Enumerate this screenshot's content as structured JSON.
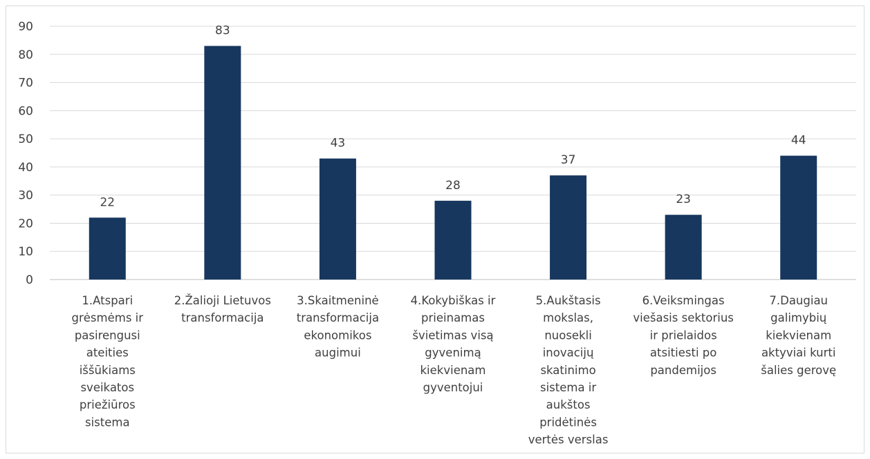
{
  "chart_data": {
    "type": "bar",
    "title": "",
    "xlabel": "",
    "ylabel": "",
    "ylim": [
      0,
      90
    ],
    "yticks": [
      0,
      10,
      20,
      30,
      40,
      50,
      60,
      70,
      80,
      90
    ],
    "grid": true,
    "legend": "none",
    "bar_color": "#17375e",
    "categories": [
      [
        "1.Atspari",
        "grėsmėms ir",
        "pasirengusi",
        "ateities",
        "iššūkiams",
        "sveikatos",
        "priežiūros",
        "sistema"
      ],
      [
        "2.Žalioji Lietuvos",
        "transformacija"
      ],
      [
        "3.Skaitmeninė",
        "transformacija",
        "ekonomikos",
        "augimui"
      ],
      [
        "4.Kokybiškas ir",
        "prieinamas",
        "švietimas visą",
        "gyvenimą",
        "kiekvienam",
        "gyventojui"
      ],
      [
        "5.Aukštasis",
        "mokslas,",
        "nuosekli",
        "inovacijų",
        "skatinimo",
        "sistema ir",
        "aukštos",
        "pridėtinės",
        "vertės verslas"
      ],
      [
        "6.Veiksmingas",
        "viešasis sektorius",
        "ir prielaidos",
        "atsitiesti po",
        "pandemijos"
      ],
      [
        "7.Daugiau",
        "galimybių",
        "kiekvienam",
        "aktyviai kurti",
        "šalies gerovę"
      ]
    ],
    "values": [
      22,
      83,
      43,
      28,
      37,
      23,
      44
    ]
  }
}
